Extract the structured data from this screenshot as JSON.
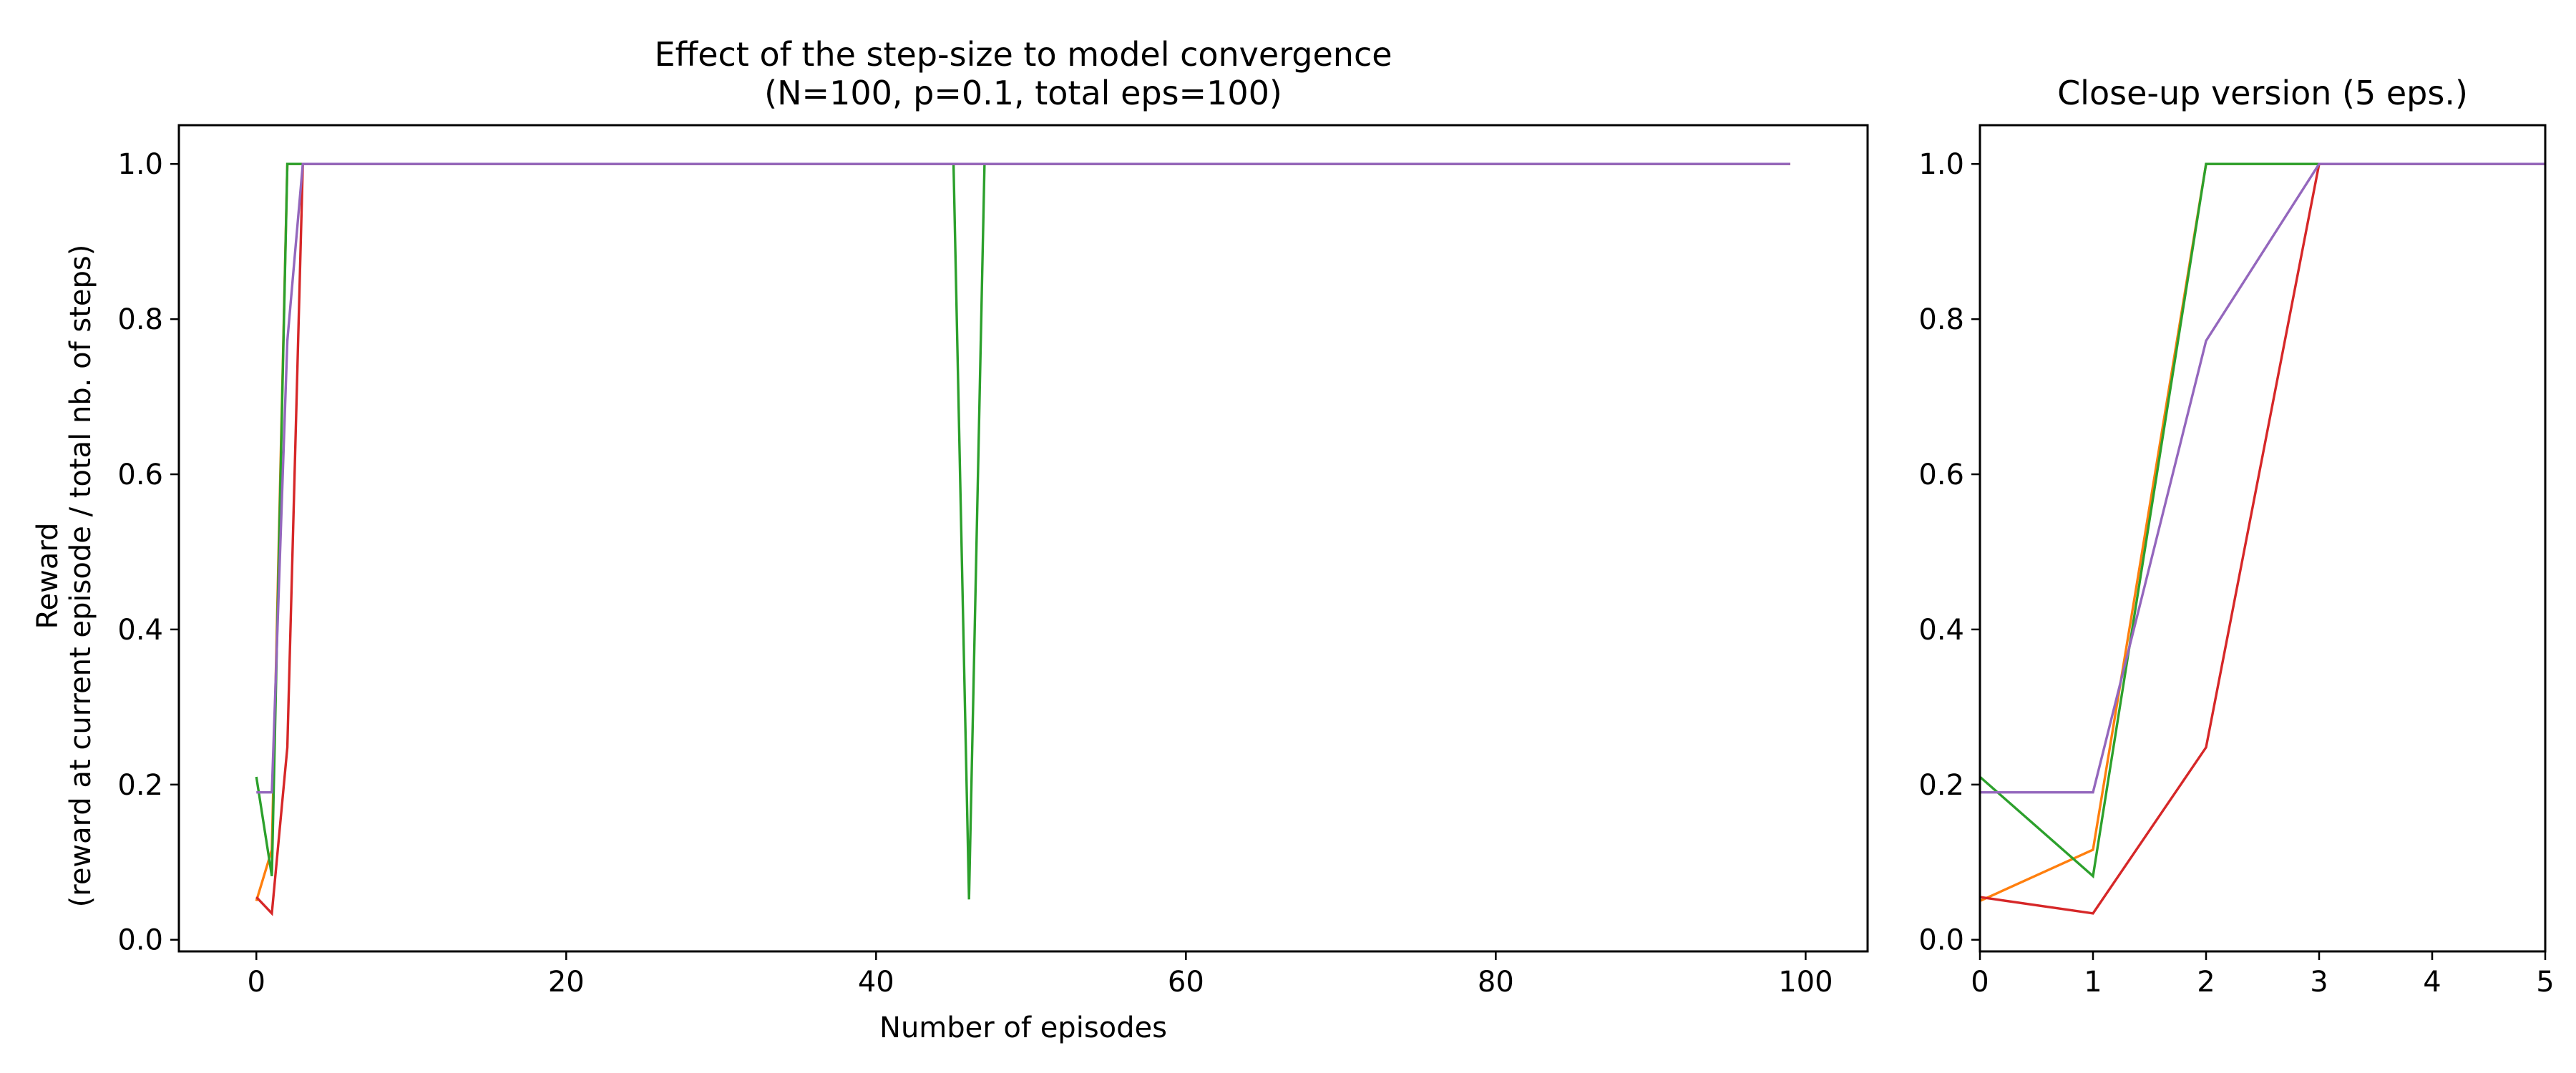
{
  "colors": {
    "orange": "#ff7f0e",
    "green": "#2ca02c",
    "red": "#d62728",
    "purple": "#9467bd"
  },
  "chart_data": [
    {
      "type": "line",
      "title_lines": [
        "Effect of the step-size to model convergence",
        "(N=100, p=0.1, total eps=100)"
      ],
      "xlabel": "Number of episodes",
      "ylabel_lines": [
        "Reward",
        "(reward at current episode / total nb. of steps)"
      ],
      "xlim": [
        -5,
        104
      ],
      "ylim": [
        -0.015,
        1.05
      ],
      "xticks": [
        0,
        20,
        40,
        60,
        80,
        100
      ],
      "xtick_labels": [
        "0",
        "20",
        "40",
        "60",
        "80",
        "100"
      ],
      "yticks": [
        0.0,
        0.2,
        0.4,
        0.6,
        0.8,
        1.0
      ],
      "ytick_labels": [
        "0.0",
        "0.2",
        "0.4",
        "0.6",
        "0.8",
        "1.0"
      ],
      "grid": false,
      "series": [
        {
          "color_key": "orange",
          "points": [
            [
              0,
              0.05
            ],
            [
              1,
              0.116
            ],
            [
              2,
              1.0
            ],
            [
              3,
              1.0
            ],
            [
              99,
              1.0
            ]
          ]
        },
        {
          "color_key": "green",
          "points": [
            [
              0,
              0.21
            ],
            [
              1,
              0.082
            ],
            [
              2,
              1.0
            ],
            [
              3,
              1.0
            ],
            [
              45,
              1.0
            ],
            [
              46,
              0.052
            ],
            [
              47,
              1.0
            ],
            [
              99,
              1.0
            ]
          ]
        },
        {
          "color_key": "red",
          "points": [
            [
              0,
              0.055
            ],
            [
              1,
              0.034
            ],
            [
              2,
              0.248
            ],
            [
              3,
              1.0
            ],
            [
              99,
              1.0
            ]
          ]
        },
        {
          "color_key": "purple",
          "points": [
            [
              0,
              0.19
            ],
            [
              1,
              0.19
            ],
            [
              2,
              0.772
            ],
            [
              3,
              1.0
            ],
            [
              99,
              1.0
            ]
          ]
        }
      ]
    },
    {
      "type": "line",
      "title_lines": [
        "Close-up version (5 eps.)"
      ],
      "xlabel": "",
      "ylabel_lines": [],
      "xlim": [
        0,
        5
      ],
      "ylim": [
        -0.015,
        1.05
      ],
      "xticks": [
        0,
        1,
        2,
        3,
        4,
        5
      ],
      "xtick_labels": [
        "0",
        "1",
        "2",
        "3",
        "4",
        "5"
      ],
      "yticks": [
        0.0,
        0.2,
        0.4,
        0.6,
        0.8,
        1.0
      ],
      "ytick_labels": [
        "0.0",
        "0.2",
        "0.4",
        "0.6",
        "0.8",
        "1.0"
      ],
      "grid": false,
      "series": [
        {
          "color_key": "orange",
          "points": [
            [
              0,
              0.05
            ],
            [
              1,
              0.116
            ],
            [
              2,
              1.0
            ],
            [
              3,
              1.0
            ],
            [
              5,
              1.0
            ]
          ]
        },
        {
          "color_key": "green",
          "points": [
            [
              0,
              0.21
            ],
            [
              1,
              0.082
            ],
            [
              2,
              1.0
            ],
            [
              3,
              1.0
            ],
            [
              5,
              1.0
            ]
          ]
        },
        {
          "color_key": "red",
          "points": [
            [
              0,
              0.055
            ],
            [
              1,
              0.034
            ],
            [
              2,
              0.248
            ],
            [
              3,
              1.0
            ],
            [
              5,
              1.0
            ]
          ]
        },
        {
          "color_key": "purple",
          "points": [
            [
              0,
              0.19
            ],
            [
              1,
              0.19
            ],
            [
              2,
              0.772
            ],
            [
              3,
              1.0
            ],
            [
              5,
              1.0
            ]
          ]
        }
      ]
    }
  ]
}
